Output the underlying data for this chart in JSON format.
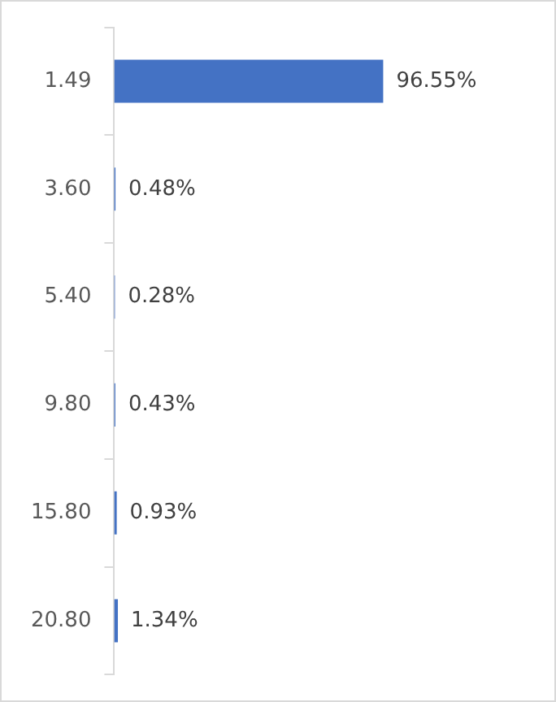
{
  "chart_data": {
    "type": "bar",
    "orientation": "horizontal",
    "categories": [
      "1.49",
      "3.60",
      "5.40",
      "9.80",
      "15.80",
      "20.80"
    ],
    "values": [
      96.55,
      0.48,
      0.28,
      0.43,
      0.93,
      1.34
    ],
    "color": "#4472c4",
    "value_labels": [
      "96.55%",
      "0.48%",
      "0.28%",
      "0.43%",
      "0.93%",
      "1.34%"
    ],
    "grid": false,
    "legend": false
  }
}
